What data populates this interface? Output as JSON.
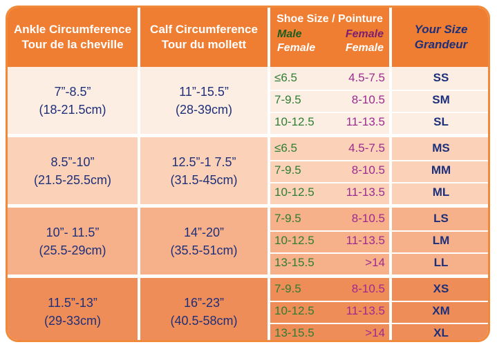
{
  "header": {
    "ankle_en": "Ankle Circumference",
    "ankle_fr": "Tour de la cheville",
    "calf_en": "Calf Circumference",
    "calf_fr": "Tour du mollett",
    "shoe_title": "Shoe Size / Pointure",
    "male_label": "Male",
    "female_label_1": "Female",
    "female_sub_left": "Female",
    "female_sub_right": "Female",
    "your_size": "Your Size",
    "grandeur": "Grandeur"
  },
  "colors": {
    "header": "#ef7d32",
    "band1": "#fdeee4",
    "band2": "#fbd2b7",
    "band3": "#f6b08a",
    "band4": "#ef8d58",
    "text_blue": "#1e2f7a",
    "male_green": "#2e7d32",
    "female_purple": "#9c2a8e"
  },
  "bands": [
    {
      "ankle": "7”-8.5”",
      "ankle_cm": "(18-21.5cm)",
      "calf": "11”-15.5”",
      "calf_cm": "(28-39cm)",
      "rows": [
        {
          "male": "≤6.5",
          "female": "4.5-7.5",
          "size": "SS"
        },
        {
          "male": "7-9.5",
          "female": "8-10.5",
          "size": "SM"
        },
        {
          "male": "10-12.5",
          "female": "11-13.5",
          "size": "SL"
        }
      ]
    },
    {
      "ankle": "8.5”-10”",
      "ankle_cm": "(21.5-25.5cm)",
      "calf": "12.5”-1 7.5”",
      "calf_cm": "(31.5-45cm)",
      "rows": [
        {
          "male": "≤6.5",
          "female": "4.5-7.5",
          "size": "MS"
        },
        {
          "male": "7-9.5",
          "female": "8-10.5",
          "size": "MM"
        },
        {
          "male": "10-12.5",
          "female": "11-13.5",
          "size": "ML"
        }
      ]
    },
    {
      "ankle": "10”- 11.5”",
      "ankle_cm": "(25.5-29cm)",
      "calf": "14”-20”",
      "calf_cm": "(35.5-51cm)",
      "rows": [
        {
          "male": "7-9.5",
          "female": "8-10.5",
          "size": "LS"
        },
        {
          "male": "10-12.5",
          "female": "11-13.5",
          "size": "LM"
        },
        {
          "male": "13-15.5",
          "female": ">14",
          "size": "LL"
        }
      ]
    },
    {
      "ankle": "11.5”-13”",
      "ankle_cm": "(29-33cm)",
      "calf": "16”-23”",
      "calf_cm": "(40.5-58cm)",
      "rows": [
        {
          "male": "7-9.5",
          "female": "8-10.5",
          "size": "XS"
        },
        {
          "male": "10-12.5",
          "female": "11-13.5",
          "size": "XM"
        },
        {
          "male": "13-15.5",
          "female": ">14",
          "size": "XL"
        }
      ]
    }
  ]
}
